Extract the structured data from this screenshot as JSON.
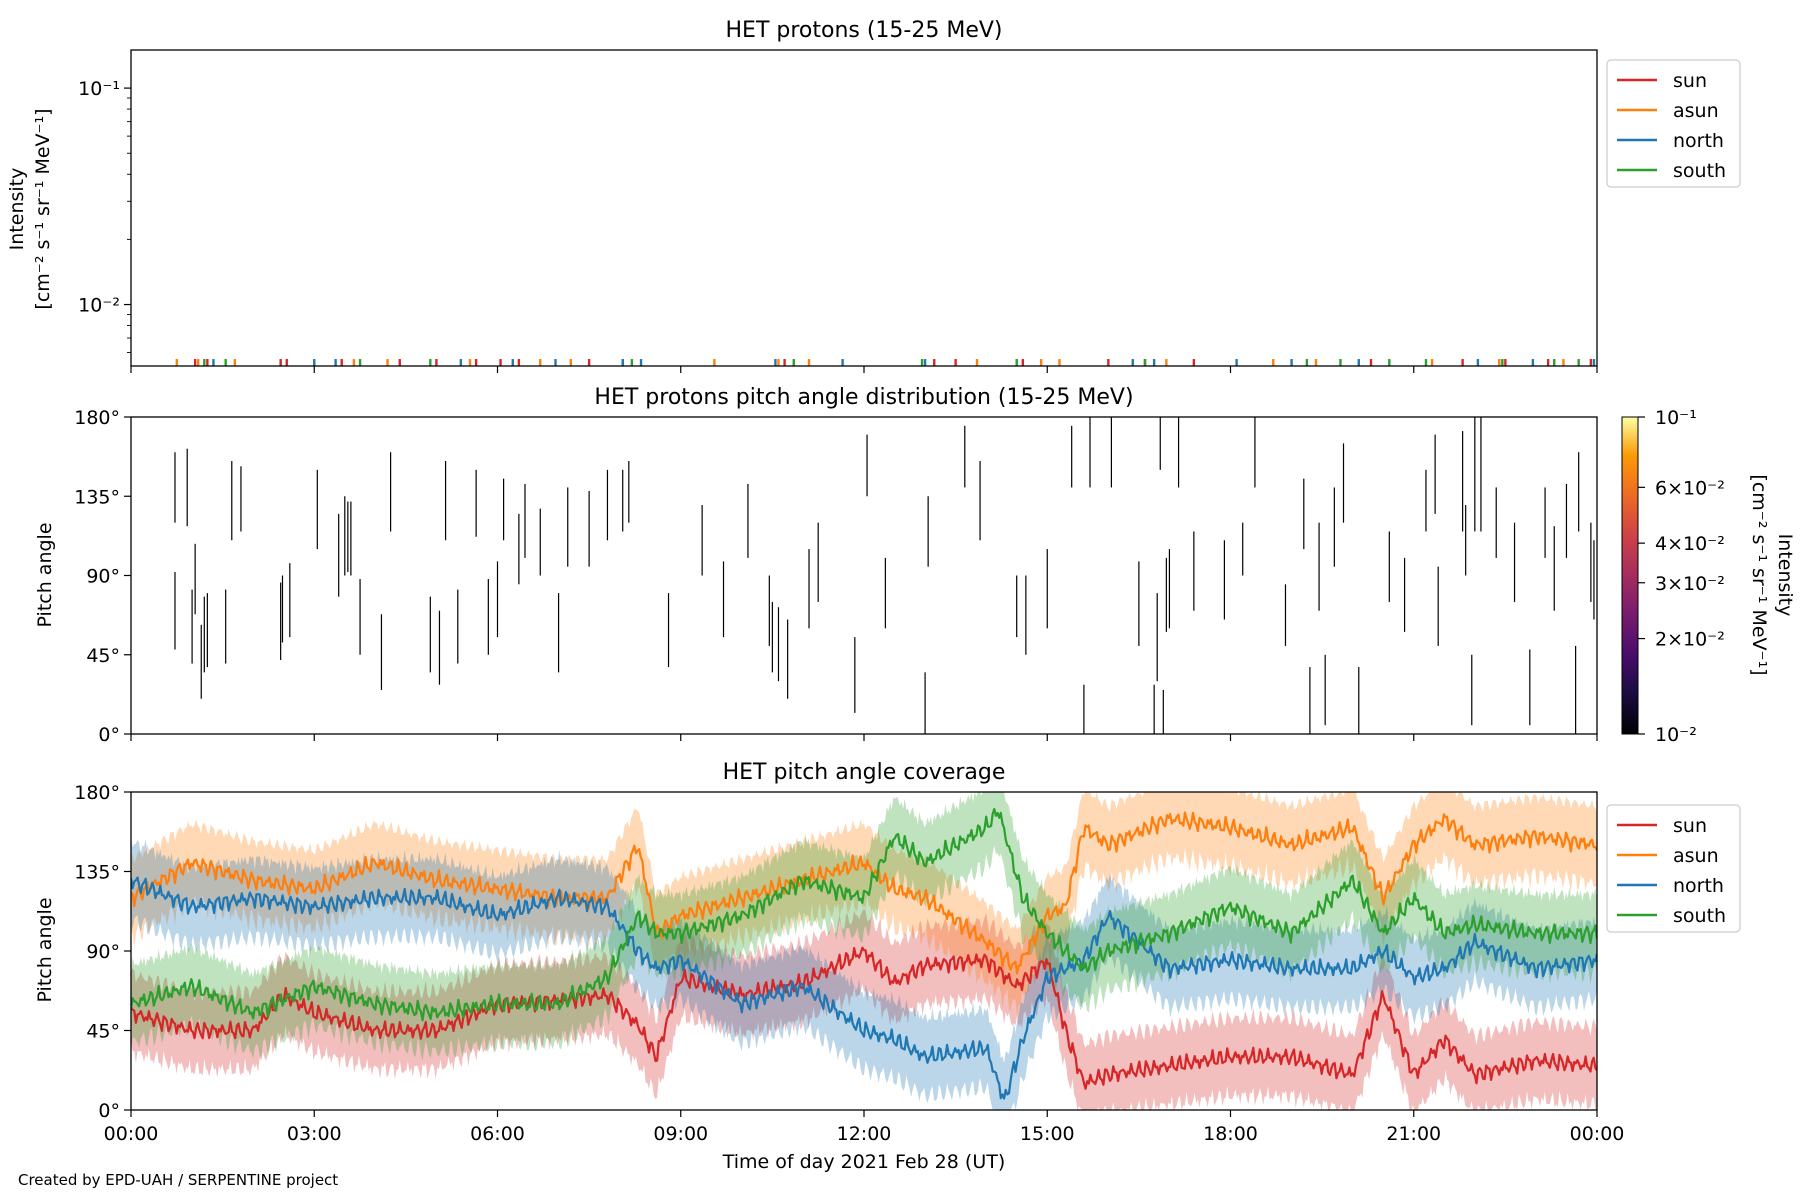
{
  "credit": "Created by EPD-UAH / SERPENTINE project",
  "colors": {
    "sun": "#d62728",
    "asun": "#ff7f0e",
    "north": "#1f77b4",
    "south": "#2ca02c",
    "segment": "#000000"
  },
  "chart_data": [
    {
      "type": "line",
      "title": "HET protons (15-25 MeV)",
      "ylabel": [
        "Intensity",
        "[cm⁻² s⁻¹ sr⁻¹ MeV⁻¹]"
      ],
      "yscale": "log",
      "ylim": [
        0.0052,
        0.15
      ],
      "yticks": [
        {
          "value": 0.1,
          "label": "10⁻¹"
        },
        {
          "value": 0.01,
          "label": "10⁻²"
        }
      ],
      "xlim": [
        0,
        24
      ],
      "xticks": [
        0,
        3,
        6,
        9,
        12,
        15,
        18,
        21,
        24
      ],
      "legend": {
        "position": "outside upper right",
        "entries": [
          "sun",
          "asun",
          "north",
          "south"
        ]
      },
      "note": "data are sparse: only short spikes near the lower axis limit (~0.0055)",
      "spike_level": 0.0056,
      "series": [
        {
          "name": "sun",
          "color": "#d62728",
          "x": [
            1.05,
            1.25,
            2.45,
            2.55,
            3.45,
            4.4,
            5.0,
            5.65,
            6.05,
            6.35,
            7.5,
            8.05,
            10.7,
            13.15,
            13.5,
            14.6,
            16.0,
            16.6,
            17.4,
            20.3,
            21.8,
            22.5,
            23.2,
            23.9
          ]
        },
        {
          "name": "asun",
          "color": "#ff7f0e",
          "x": [
            0.75,
            1.1,
            1.7,
            3.65,
            4.2,
            5.55,
            6.7,
            7.2,
            9.55,
            10.6,
            11.1,
            13.85,
            14.9,
            15.2,
            16.95,
            18.7,
            19.4,
            21.3,
            22.4,
            23.45
          ]
        },
        {
          "name": "north",
          "color": "#1f77b4",
          "x": [
            1.35,
            3.0,
            3.35,
            5.4,
            6.25,
            6.95,
            8.05,
            8.35,
            10.55,
            11.65,
            13.0,
            16.4,
            16.75,
            18.1,
            19.0,
            20.1,
            22.05,
            22.95,
            23.95
          ]
        },
        {
          "name": "south",
          "color": "#2ca02c",
          "x": [
            1.2,
            1.55,
            3.75,
            4.9,
            8.2,
            10.85,
            12.95,
            14.5,
            16.6,
            19.25,
            19.8,
            20.6,
            21.2,
            22.45,
            23.3,
            23.7
          ]
        }
      ]
    },
    {
      "type": "heatmap",
      "title": "HET protons pitch angle distribution (15-25 MeV)",
      "ylabel": "Pitch angle",
      "ylim": [
        0,
        180
      ],
      "yticks": [
        {
          "value": 0,
          "label": "0°"
        },
        {
          "value": 45,
          "label": "45°"
        },
        {
          "value": 90,
          "label": "90°"
        },
        {
          "value": 135,
          "label": "135°"
        },
        {
          "value": 180,
          "label": "180°"
        }
      ],
      "xlim": [
        0,
        24
      ],
      "xticks": [
        0,
        3,
        6,
        9,
        12,
        15,
        18,
        21,
        24
      ],
      "colorbar": {
        "label": "Intensity\n[cm⁻² s⁻¹ sr⁻¹ MeV⁻¹]",
        "scale": "log",
        "range": [
          0.01,
          0.1
        ],
        "colormap": "inferno",
        "ticks": [
          {
            "value": 0.1,
            "label": "10⁻¹"
          },
          {
            "value": 0.06,
            "label": "6×10⁻²"
          },
          {
            "value": 0.04,
            "label": "4×10⁻²"
          },
          {
            "value": 0.03,
            "label": "3×10⁻²"
          },
          {
            "value": 0.02,
            "label": "2×10⁻²"
          },
          {
            "value": 0.01,
            "label": "10⁻²"
          }
        ]
      },
      "note": "each vertical segment is one non-zero sample spanning its pitch-angle range; color at lower colormap limit",
      "segments": [
        [
          0.72,
          120,
          160
        ],
        [
          0.72,
          48,
          92
        ],
        [
          0.92,
          118,
          162
        ],
        [
          1.0,
          40,
          82
        ],
        [
          1.05,
          68,
          108
        ],
        [
          1.15,
          20,
          62
        ],
        [
          1.2,
          35,
          78
        ],
        [
          1.25,
          38,
          80
        ],
        [
          1.55,
          40,
          82
        ],
        [
          1.65,
          110,
          155
        ],
        [
          1.8,
          115,
          152
        ],
        [
          2.45,
          42,
          86
        ],
        [
          2.48,
          52,
          90
        ],
        [
          2.6,
          55,
          97
        ],
        [
          3.05,
          105,
          150
        ],
        [
          3.4,
          78,
          125
        ],
        [
          3.5,
          90,
          135
        ],
        [
          3.55,
          92,
          132
        ],
        [
          3.6,
          90,
          132
        ],
        [
          3.75,
          45,
          88
        ],
        [
          4.1,
          25,
          68
        ],
        [
          4.25,
          115,
          160
        ],
        [
          4.9,
          35,
          78
        ],
        [
          5.05,
          28,
          70
        ],
        [
          5.15,
          110,
          155
        ],
        [
          5.35,
          40,
          82
        ],
        [
          5.65,
          112,
          150
        ],
        [
          5.85,
          45,
          88
        ],
        [
          6.0,
          55,
          98
        ],
        [
          6.1,
          110,
          145
        ],
        [
          6.35,
          85,
          125
        ],
        [
          6.45,
          100,
          142
        ],
        [
          6.7,
          90,
          128
        ],
        [
          7.0,
          35,
          80
        ],
        [
          7.15,
          95,
          140
        ],
        [
          7.5,
          95,
          138
        ],
        [
          7.8,
          110,
          150
        ],
        [
          8.05,
          115,
          150
        ],
        [
          8.15,
          120,
          155
        ],
        [
          8.8,
          38,
          80
        ],
        [
          9.35,
          90,
          130
        ],
        [
          9.7,
          55,
          98
        ],
        [
          10.1,
          100,
          142
        ],
        [
          10.45,
          50,
          90
        ],
        [
          10.5,
          35,
          75
        ],
        [
          10.6,
          30,
          72
        ],
        [
          10.75,
          20,
          65
        ],
        [
          11.1,
          60,
          105
        ],
        [
          11.25,
          75,
          120
        ],
        [
          11.85,
          12,
          55
        ],
        [
          12.05,
          135,
          170
        ],
        [
          12.35,
          60,
          100
        ],
        [
          13.0,
          0,
          35
        ],
        [
          13.05,
          95,
          135
        ],
        [
          13.65,
          140,
          175
        ],
        [
          13.9,
          110,
          155
        ],
        [
          14.5,
          55,
          90
        ],
        [
          14.65,
          45,
          90
        ],
        [
          15.0,
          60,
          105
        ],
        [
          15.4,
          140,
          175
        ],
        [
          15.6,
          0,
          28
        ],
        [
          15.7,
          140,
          180
        ],
        [
          16.05,
          140,
          180
        ],
        [
          16.5,
          50,
          98
        ],
        [
          16.75,
          0,
          28
        ],
        [
          16.8,
          30,
          80
        ],
        [
          16.85,
          150,
          180
        ],
        [
          16.9,
          0,
          25
        ],
        [
          16.95,
          58,
          100
        ],
        [
          17.0,
          60,
          105
        ],
        [
          17.15,
          140,
          180
        ],
        [
          17.4,
          70,
          115
        ],
        [
          17.9,
          65,
          110
        ],
        [
          18.2,
          90,
          120
        ],
        [
          18.4,
          140,
          180
        ],
        [
          18.9,
          50,
          85
        ],
        [
          19.2,
          105,
          145
        ],
        [
          19.3,
          0,
          38
        ],
        [
          19.45,
          70,
          120
        ],
        [
          19.55,
          5,
          45
        ],
        [
          19.7,
          95,
          140
        ],
        [
          19.85,
          120,
          165
        ],
        [
          20.1,
          0,
          38
        ],
        [
          20.6,
          75,
          115
        ],
        [
          20.85,
          58,
          100
        ],
        [
          21.2,
          115,
          150
        ],
        [
          21.35,
          125,
          170
        ],
        [
          21.4,
          50,
          95
        ],
        [
          21.8,
          115,
          172
        ],
        [
          21.85,
          90,
          130
        ],
        [
          21.95,
          5,
          45
        ],
        [
          22.0,
          115,
          180
        ],
        [
          22.1,
          115,
          180
        ],
        [
          22.35,
          100,
          140
        ],
        [
          22.65,
          75,
          120
        ],
        [
          22.9,
          5,
          48
        ],
        [
          23.15,
          100,
          140
        ],
        [
          23.3,
          70,
          118
        ],
        [
          23.5,
          100,
          142
        ],
        [
          23.65,
          0,
          50
        ],
        [
          23.7,
          115,
          160
        ],
        [
          23.9,
          75,
          120
        ],
        [
          23.95,
          65,
          110
        ]
      ]
    },
    {
      "type": "area",
      "title": "HET pitch angle coverage",
      "ylabel": "Pitch angle",
      "xlabel": "Time of day 2021 Feb 28 (UT)",
      "ylim": [
        0,
        180
      ],
      "yticks": [
        {
          "value": 0,
          "label": "0°"
        },
        {
          "value": 45,
          "label": "45°"
        },
        {
          "value": 90,
          "label": "90°"
        },
        {
          "value": 135,
          "label": "135°"
        },
        {
          "value": 180,
          "label": "180°"
        }
      ],
      "xlim": [
        0,
        24
      ],
      "xticks": [
        {
          "value": 0,
          "label": "00:00"
        },
        {
          "value": 3,
          "label": "03:00"
        },
        {
          "value": 6,
          "label": "06:00"
        },
        {
          "value": 9,
          "label": "09:00"
        },
        {
          "value": 12,
          "label": "12:00"
        },
        {
          "value": 15,
          "label": "15:00"
        },
        {
          "value": 18,
          "label": "18:00"
        },
        {
          "value": 21,
          "label": "21:00"
        },
        {
          "value": 24,
          "label": "00:00"
        }
      ],
      "legend": {
        "position": "outside upper right",
        "entries": [
          "sun",
          "asun",
          "north",
          "south"
        ]
      },
      "band_halfwidth_deg": 22,
      "noise_amplitude_deg": 6,
      "series": [
        {
          "name": "sun",
          "color": "#d62728",
          "x": [
            0,
            1,
            2,
            2.5,
            3,
            4,
            5,
            6,
            7,
            7.8,
            8.3,
            8.6,
            9,
            10,
            11,
            12,
            12.5,
            13,
            14,
            14.5,
            15,
            15.3,
            15.6,
            16,
            17,
            18,
            19,
            20,
            20.5,
            21,
            21.5,
            22,
            23,
            24
          ],
          "y": [
            55,
            45,
            45,
            65,
            55,
            45,
            45,
            60,
            62,
            65,
            48,
            30,
            75,
            65,
            72,
            90,
            72,
            82,
            85,
            70,
            85,
            45,
            15,
            20,
            25,
            30,
            30,
            20,
            65,
            20,
            40,
            20,
            28,
            25
          ]
        },
        {
          "name": "asun",
          "color": "#ff7f0e",
          "x": [
            0,
            1,
            2,
            3,
            4,
            5,
            6,
            7,
            7.8,
            8.3,
            8.6,
            9,
            10,
            11,
            12,
            12.5,
            13,
            14,
            14.5,
            15,
            15.3,
            15.6,
            16,
            17,
            18,
            19,
            20,
            20.5,
            21,
            21.5,
            22,
            23,
            24
          ],
          "y": [
            120,
            140,
            130,
            125,
            140,
            130,
            125,
            120,
            120,
            150,
            100,
            110,
            120,
            130,
            140,
            125,
            120,
            95,
            80,
            110,
            115,
            160,
            150,
            165,
            160,
            150,
            160,
            120,
            150,
            165,
            150,
            155,
            150
          ]
        },
        {
          "name": "north",
          "color": "#1f77b4",
          "x": [
            0,
            1,
            2,
            3,
            4,
            5,
            6,
            7,
            7.8,
            8.3,
            8.6,
            9,
            10,
            11,
            12,
            12.5,
            13,
            14,
            14.3,
            14.6,
            15,
            15.3,
            15.6,
            16,
            17,
            18,
            19,
            20,
            20.5,
            21,
            21.5,
            22,
            23,
            24
          ],
          "y": [
            130,
            115,
            120,
            115,
            120,
            120,
            110,
            120,
            115,
            90,
            80,
            85,
            60,
            70,
            45,
            40,
            30,
            35,
            5,
            40,
            75,
            80,
            85,
            110,
            80,
            85,
            80,
            80,
            90,
            75,
            80,
            95,
            80,
            85
          ]
        },
        {
          "name": "south",
          "color": "#2ca02c",
          "x": [
            0,
            1,
            2,
            3,
            4,
            5,
            6,
            7,
            7.8,
            8.3,
            8.6,
            9,
            10,
            11,
            12,
            12.5,
            13,
            14,
            14.2,
            14.6,
            15,
            15.3,
            15.6,
            16,
            17,
            18,
            19,
            20,
            20.5,
            21,
            21.5,
            22,
            23,
            24
          ],
          "y": [
            60,
            70,
            55,
            70,
            60,
            55,
            60,
            60,
            75,
            110,
            100,
            100,
            110,
            130,
            120,
            155,
            140,
            160,
            170,
            120,
            100,
            90,
            80,
            90,
            100,
            115,
            100,
            130,
            100,
            120,
            100,
            105,
            100,
            100
          ]
        }
      ]
    }
  ]
}
